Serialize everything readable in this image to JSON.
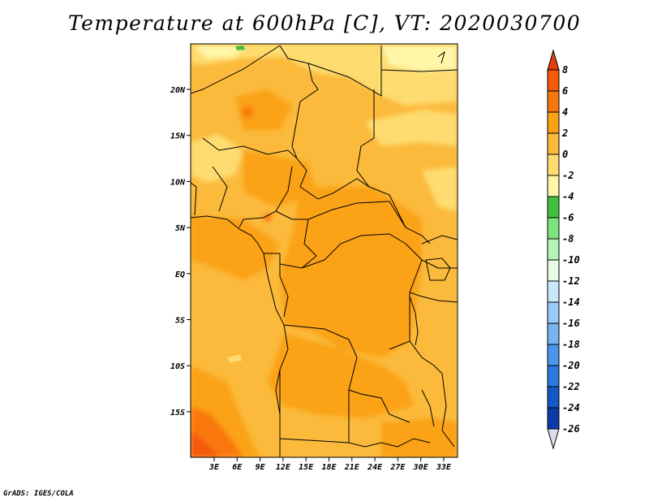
{
  "title": "Temperature at 600hPa [C], VT: 2020030700",
  "footer": "GrADS: IGES/COLA",
  "map": {
    "lat_labels": [
      "20N",
      "15N",
      "10N",
      "5N",
      "EQ",
      "5S",
      "10S",
      "15S"
    ],
    "lon_labels": [
      "3E",
      "6E",
      "9E",
      "12E",
      "15E",
      "18E",
      "21E",
      "24E",
      "27E",
      "30E",
      "33E"
    ]
  },
  "colorbar": {
    "labels": [
      "8",
      "6",
      "4",
      "2",
      "0",
      "-2",
      "-4",
      "-6",
      "-8",
      "-10",
      "-12",
      "-14",
      "-16",
      "-18",
      "-20",
      "-22",
      "-24",
      "-26"
    ],
    "colors": [
      "#e83c08",
      "#f55a0a",
      "#f9780c",
      "#fba214",
      "#fbba3c",
      "#fedc70",
      "#fff6a8",
      "#40c040",
      "#7ce47c",
      "#b6f4b6",
      "#e6fae6",
      "#c8e8fa",
      "#9ccaf6",
      "#78b4f0",
      "#4a96ea",
      "#2a78e0",
      "#1458c8",
      "#0a3ca8",
      "#001a78",
      "#dcdcf0"
    ]
  }
}
